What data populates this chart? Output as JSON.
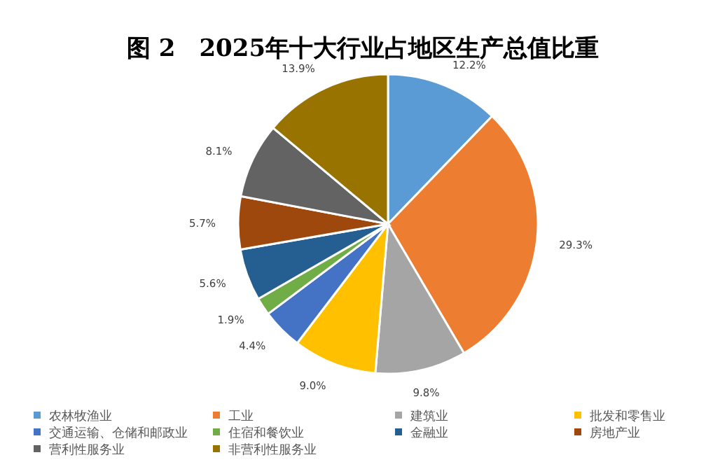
{
  "chart_data": {
    "type": "pie",
    "title": "图 2　2025年十大行业占地区生产总值比重",
    "categories": [
      "农林牧渔业",
      "工业",
      "建筑业",
      "批发和零售业",
      "交通运输、仓储和邮政业",
      "住宿和餐饮业",
      "金融业",
      "房地产业",
      "营利性服务业",
      "非营利性服务业"
    ],
    "values": [
      12.2,
      29.3,
      9.8,
      9.0,
      4.4,
      1.9,
      5.6,
      5.7,
      8.1,
      13.9
    ],
    "value_labels": [
      "12.2%",
      "29.3%",
      "9.8%",
      "9.0%",
      "4.4%",
      "1.9%",
      "5.6%",
      "5.7%",
      "8.1%",
      "13.9%"
    ],
    "colors": [
      "#5b9bd5",
      "#ed7d31",
      "#a5a5a5",
      "#ffc000",
      "#4472c4",
      "#70ad47",
      "#255e91",
      "#9e480e",
      "#636363",
      "#997300"
    ],
    "legend": "bottom"
  }
}
